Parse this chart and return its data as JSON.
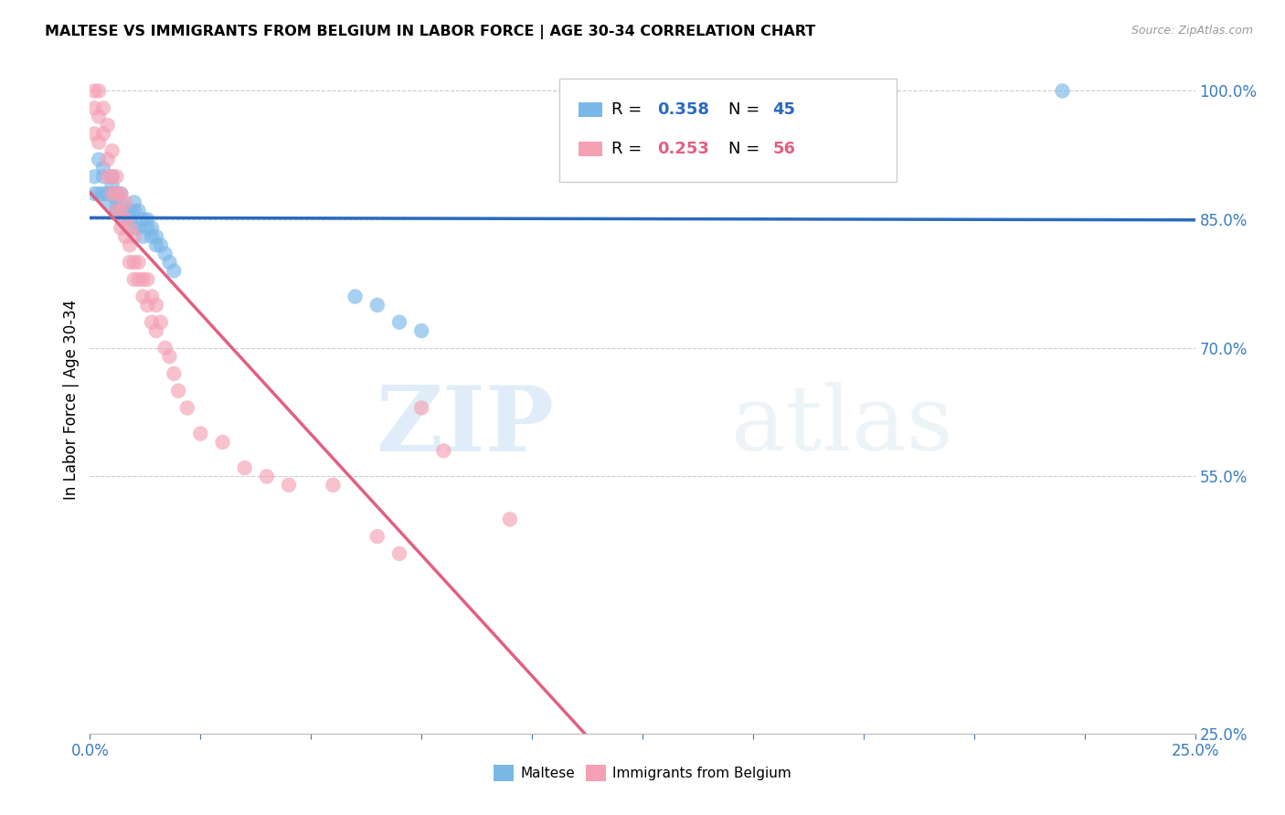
{
  "title": "MALTESE VS IMMIGRANTS FROM BELGIUM IN LABOR FORCE | AGE 30-34 CORRELATION CHART",
  "source": "Source: ZipAtlas.com",
  "ylabel": "In Labor Force | Age 30-34",
  "xlim": [
    0.0,
    0.25
  ],
  "ylim": [
    0.25,
    1.03
  ],
  "xticks": [
    0.0,
    0.025,
    0.05,
    0.075,
    0.1,
    0.125,
    0.15,
    0.175,
    0.2,
    0.225,
    0.25
  ],
  "xticklabels": [
    "0.0%",
    "",
    "",
    "",
    "",
    "",
    "",
    "",
    "",
    "",
    "25.0%"
  ],
  "yticks_right": [
    1.0,
    0.85,
    0.7,
    0.55,
    0.25
  ],
  "ytick_right_labels": [
    "100.0%",
    "85.0%",
    "70.0%",
    "55.0%",
    "25.0%"
  ],
  "r_maltese": 0.358,
  "n_maltese": 45,
  "r_belgium": 0.253,
  "n_belgium": 56,
  "color_maltese": "#7ab8e8",
  "color_belgium": "#f4a0b5",
  "color_maltese_line": "#2a6abf",
  "color_belgium_line": "#e06080",
  "watermark_zip": "ZIP",
  "watermark_atlas": "atlas",
  "legend_label_maltese": "Maltese",
  "legend_label_belgium": "Immigrants from Belgium",
  "blue_scatter_x": [
    0.001,
    0.001,
    0.002,
    0.002,
    0.003,
    0.003,
    0.003,
    0.004,
    0.004,
    0.005,
    0.005,
    0.005,
    0.006,
    0.006,
    0.006,
    0.006,
    0.007,
    0.007,
    0.007,
    0.008,
    0.008,
    0.009,
    0.009,
    0.01,
    0.01,
    0.01,
    0.011,
    0.011,
    0.012,
    0.012,
    0.013,
    0.013,
    0.014,
    0.014,
    0.015,
    0.015,
    0.016,
    0.017,
    0.018,
    0.019,
    0.06,
    0.065,
    0.07,
    0.075,
    0.22
  ],
  "blue_scatter_y": [
    0.88,
    0.9,
    0.88,
    0.92,
    0.88,
    0.9,
    0.91,
    0.87,
    0.88,
    0.89,
    0.88,
    0.9,
    0.86,
    0.87,
    0.88,
    0.86,
    0.86,
    0.87,
    0.88,
    0.86,
    0.85,
    0.85,
    0.86,
    0.84,
    0.86,
    0.87,
    0.84,
    0.86,
    0.83,
    0.85,
    0.84,
    0.85,
    0.83,
    0.84,
    0.82,
    0.83,
    0.82,
    0.81,
    0.8,
    0.79,
    0.76,
    0.75,
    0.73,
    0.72,
    1.0
  ],
  "pink_scatter_x": [
    0.001,
    0.001,
    0.001,
    0.002,
    0.002,
    0.002,
    0.003,
    0.003,
    0.004,
    0.004,
    0.004,
    0.005,
    0.005,
    0.005,
    0.006,
    0.006,
    0.006,
    0.007,
    0.007,
    0.007,
    0.008,
    0.008,
    0.008,
    0.009,
    0.009,
    0.009,
    0.01,
    0.01,
    0.01,
    0.011,
    0.011,
    0.012,
    0.012,
    0.013,
    0.013,
    0.014,
    0.014,
    0.015,
    0.015,
    0.016,
    0.017,
    0.018,
    0.019,
    0.02,
    0.022,
    0.025,
    0.03,
    0.035,
    0.04,
    0.045,
    0.055,
    0.065,
    0.07,
    0.075,
    0.08,
    0.095
  ],
  "pink_scatter_y": [
    1.0,
    0.98,
    0.95,
    1.0,
    0.97,
    0.94,
    0.98,
    0.95,
    0.96,
    0.92,
    0.9,
    0.93,
    0.9,
    0.88,
    0.9,
    0.88,
    0.86,
    0.88,
    0.86,
    0.84,
    0.87,
    0.85,
    0.83,
    0.84,
    0.82,
    0.8,
    0.83,
    0.8,
    0.78,
    0.8,
    0.78,
    0.78,
    0.76,
    0.78,
    0.75,
    0.76,
    0.73,
    0.75,
    0.72,
    0.73,
    0.7,
    0.69,
    0.67,
    0.65,
    0.63,
    0.6,
    0.59,
    0.56,
    0.55,
    0.54,
    0.54,
    0.48,
    0.46,
    0.63,
    0.58,
    0.5
  ]
}
